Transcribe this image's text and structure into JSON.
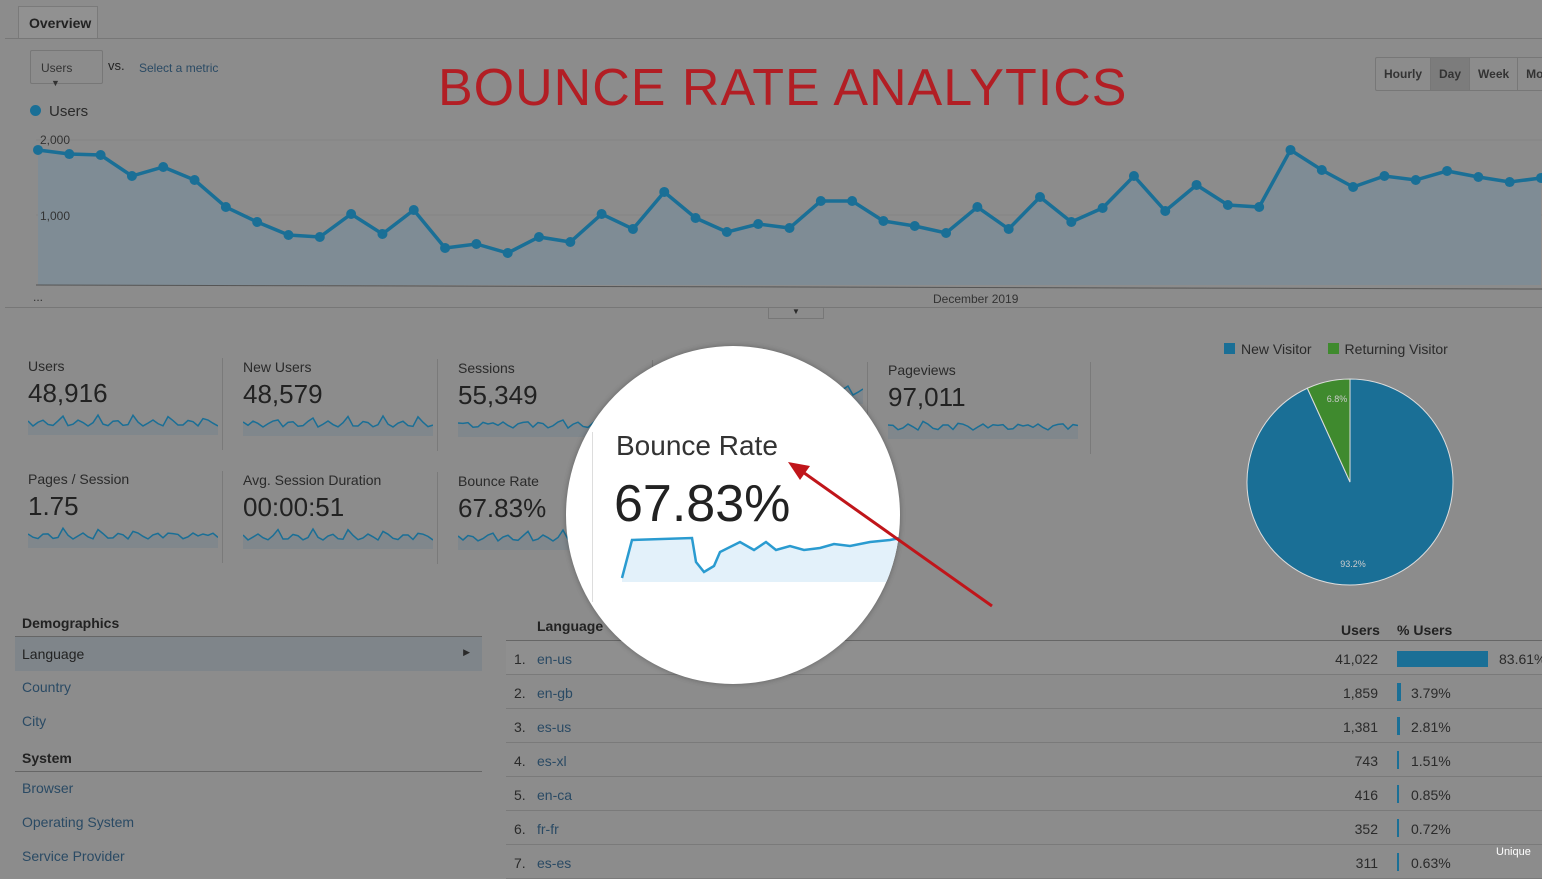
{
  "tab": "Overview",
  "metric_select": "Users",
  "vs": "vs.",
  "select_metric": "Select a metric",
  "headline": "BOUNCE RATE ANALYTICS",
  "period_buttons": [
    {
      "label": "Hourly",
      "active": false
    },
    {
      "label": "Day",
      "active": true
    },
    {
      "label": "Week",
      "active": false
    },
    {
      "label": "Mon",
      "active": false
    }
  ],
  "chart_data": {
    "type": "area",
    "series": [
      {
        "name": "Users",
        "values": [
          1929,
          1871,
          1857,
          1557,
          1686,
          1500,
          1114,
          900,
          714,
          686,
          1014,
          729,
          1071,
          529,
          586,
          457,
          686,
          614,
          1014,
          800,
          1329,
          957,
          757,
          871,
          814,
          1200,
          1200,
          914,
          843,
          743,
          1114,
          800,
          1257,
          900,
          1100,
          1557,
          1057,
          1429,
          1143,
          1114,
          1929,
          1643,
          1400,
          1557,
          1500,
          1629,
          1543,
          1471,
          1529
        ]
      }
    ],
    "y_ticks": [
      "2,000",
      "1,000"
    ],
    "ylim": [
      0,
      2000
    ],
    "x_label": "December 2019",
    "x_start": "...",
    "color": "#1a6f96"
  },
  "metrics": [
    {
      "label": "Users",
      "value": "48,916"
    },
    {
      "label": "New Users",
      "value": "48,579"
    },
    {
      "label": "Sessions",
      "value": "55,349"
    },
    {
      "label": "er User",
      "value": ""
    },
    {
      "label": "Pageviews",
      "value": "97,011"
    },
    {
      "label": "Pages / Session",
      "value": "1.75"
    },
    {
      "label": "Avg. Session Duration",
      "value": "00:00:51"
    },
    {
      "label": "Bounce Rate",
      "value": "67.83%"
    }
  ],
  "magnifier": {
    "label": "Bounce Rate",
    "value": "67.83%"
  },
  "pie": {
    "legend": [
      {
        "label": "New Visitor",
        "color": "#1a6f96",
        "value": 93.2
      },
      {
        "label": "Returning Visitor",
        "color": "#3f8a2e",
        "value": 6.8
      }
    ],
    "labels": [
      "93.2%",
      "6.8%"
    ]
  },
  "demographics": {
    "title": "Demographics",
    "items": [
      "Language",
      "Country",
      "City"
    ],
    "system_title": "System",
    "system_items": [
      "Browser",
      "Operating System",
      "Service Provider"
    ]
  },
  "table": {
    "col_language": "Language",
    "col_users": "Users",
    "col_pct": "% Users",
    "rows": [
      {
        "n": "1.",
        "lang": "en-us",
        "users": "41,022",
        "pct": "83.61%",
        "frac": 83.61
      },
      {
        "n": "2.",
        "lang": "en-gb",
        "users": "1,859",
        "pct": "3.79%",
        "frac": 3.79
      },
      {
        "n": "3.",
        "lang": "es-us",
        "users": "1,381",
        "pct": "2.81%",
        "frac": 2.81
      },
      {
        "n": "4.",
        "lang": "es-xl",
        "users": "743",
        "pct": "1.51%",
        "frac": 1.51
      },
      {
        "n": "5.",
        "lang": "en-ca",
        "users": "416",
        "pct": "0.85%",
        "frac": 0.85
      },
      {
        "n": "6.",
        "lang": "fr-fr",
        "users": "352",
        "pct": "0.72%",
        "frac": 0.72
      },
      {
        "n": "7.",
        "lang": "es-es",
        "users": "311",
        "pct": "0.63%",
        "frac": 0.63
      }
    ]
  },
  "watermark": "Unique"
}
